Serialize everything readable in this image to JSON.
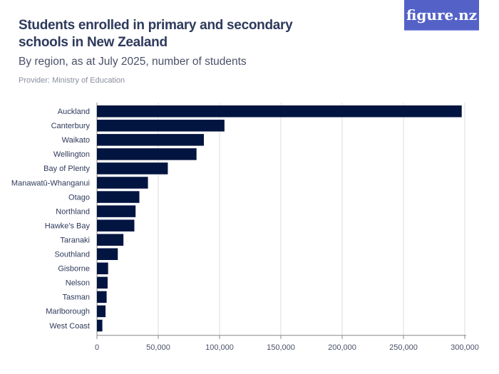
{
  "header": {
    "title": "Students enrolled in primary and secondary schools in New Zealand",
    "subtitle": "By region, as at July 2025, number of students",
    "provider": "Provider: Ministry of Education",
    "logo": "figure.nz"
  },
  "colors": {
    "bar": "#021440",
    "grid": "#dddddd",
    "logo_bg": "#5462c8"
  },
  "chart_data": {
    "type": "bar",
    "orientation": "horizontal",
    "title": "Students enrolled in primary and secondary schools in New Zealand",
    "subtitle": "By region, as at July 2025, number of students",
    "categories": [
      "Auckland",
      "Canterbury",
      "Waikato",
      "Wellington",
      "Bay of Plenty",
      "Manawatū-Whanganui",
      "Otago",
      "Northland",
      "Hawke's Bay",
      "Taranaki",
      "Southland",
      "Gisborne",
      "Nelson",
      "Tasman",
      "Marlborough",
      "West Coast"
    ],
    "values": [
      297500,
      104000,
      87200,
      81200,
      57800,
      41600,
      34600,
      31500,
      30500,
      21600,
      17000,
      9100,
      8700,
      7900,
      7000,
      4400
    ],
    "xlim": [
      0,
      300000
    ],
    "xticks": [
      0,
      50000,
      100000,
      150000,
      200000,
      250000,
      300000
    ],
    "xtick_labels": [
      "0",
      "50,000",
      "100,000",
      "150,000",
      "200,000",
      "250,000",
      "300,000"
    ],
    "grid": true
  }
}
